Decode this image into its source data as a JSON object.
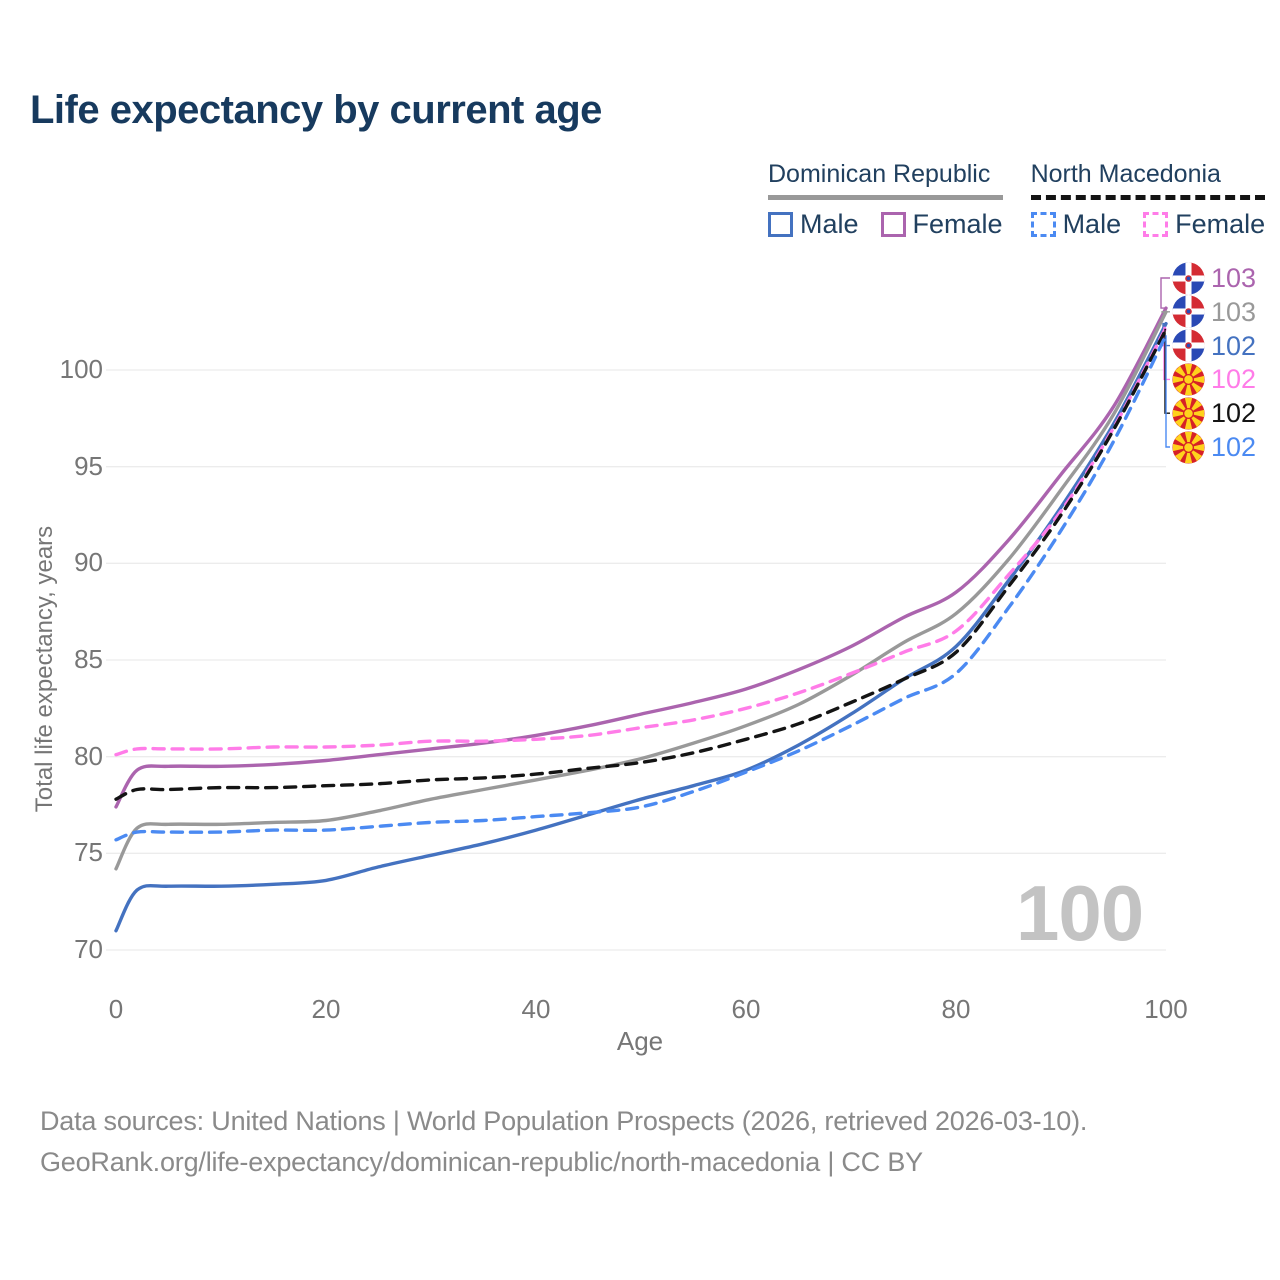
{
  "title": "Life expectancy by current age",
  "legend": {
    "groups": [
      {
        "title": "Dominican Republic",
        "underline_color": "#999999",
        "underline_dashed": false,
        "items": [
          {
            "label": "Male",
            "color": "#4472c0",
            "dashed": false
          },
          {
            "label": "Female",
            "color": "#ab64ae",
            "dashed": false
          }
        ]
      },
      {
        "title": "North Macedonia",
        "underline_color": "#141414",
        "underline_dashed": true,
        "items": [
          {
            "label": "Male",
            "color": "#4b8af2",
            "dashed": true
          },
          {
            "label": "Female",
            "color": "#ff7ce8",
            "dashed": true
          }
        ]
      }
    ]
  },
  "chart_data": {
    "type": "line",
    "title": "Life expectancy by current age",
    "xlabel": "Age",
    "ylabel": "Total life expectancy, years",
    "xlim": [
      0,
      100
    ],
    "ylim": [
      69,
      104.5
    ],
    "x_ticks": [
      0,
      20,
      40,
      60,
      80,
      100
    ],
    "y_ticks": [
      70,
      75,
      80,
      85,
      90,
      95,
      100
    ],
    "grid": true,
    "legend_position": "top-right",
    "age_indicator": "100",
    "x": [
      0,
      2,
      5,
      10,
      15,
      20,
      25,
      30,
      35,
      40,
      45,
      50,
      55,
      60,
      65,
      70,
      75,
      80,
      85,
      90,
      95,
      100
    ],
    "series": [
      {
        "name": "Dominican Republic Female",
        "country": "Dominican Republic",
        "sex": "Female",
        "color": "#ab64ae",
        "dashed": false,
        "flag": "dominican-republic",
        "end_label": "103",
        "values": [
          77.4,
          79.3,
          79.5,
          79.5,
          79.6,
          79.8,
          80.1,
          80.4,
          80.7,
          81.1,
          81.6,
          82.2,
          82.8,
          83.5,
          84.5,
          85.7,
          87.2,
          88.5,
          91.2,
          94.6,
          98.1,
          103.2
        ]
      },
      {
        "name": "Dominican Republic Both sexes",
        "country": "Dominican Republic",
        "sex": "Both",
        "color": "#999999",
        "dashed": false,
        "flag": "dominican-republic",
        "end_label": "103",
        "values": [
          74.2,
          76.3,
          76.5,
          76.5,
          76.6,
          76.7,
          77.2,
          77.8,
          78.3,
          78.8,
          79.3,
          79.9,
          80.7,
          81.6,
          82.7,
          84.2,
          85.9,
          87.4,
          90.2,
          93.8,
          97.7,
          103.0
        ]
      },
      {
        "name": "Dominican Republic Male",
        "country": "Dominican Republic",
        "sex": "Male",
        "color": "#4472c0",
        "dashed": false,
        "flag": "dominican-republic",
        "end_label": "102",
        "values": [
          71.0,
          73.1,
          73.3,
          73.3,
          73.4,
          73.6,
          74.3,
          74.9,
          75.5,
          76.2,
          77.0,
          77.8,
          78.5,
          79.3,
          80.6,
          82.2,
          84.0,
          85.7,
          89.1,
          92.9,
          97.2,
          102.4
        ]
      },
      {
        "name": "North Macedonia Female",
        "country": "North Macedonia",
        "sex": "Female",
        "color": "#ff7ce8",
        "dashed": true,
        "flag": "north-macedonia",
        "end_label": "102",
        "values": [
          80.1,
          80.4,
          80.4,
          80.4,
          80.5,
          80.5,
          80.6,
          80.8,
          80.8,
          80.9,
          81.1,
          81.5,
          81.9,
          82.5,
          83.3,
          84.3,
          85.4,
          86.5,
          89.4,
          92.7,
          97.0,
          102.2
        ]
      },
      {
        "name": "North Macedonia Both sexes",
        "country": "North Macedonia",
        "sex": "Both",
        "color": "#141414",
        "dashed": true,
        "flag": "north-macedonia",
        "end_label": "102",
        "values": [
          77.8,
          78.3,
          78.3,
          78.4,
          78.4,
          78.5,
          78.6,
          78.8,
          78.9,
          79.1,
          79.4,
          79.7,
          80.2,
          80.9,
          81.7,
          82.8,
          84.0,
          85.4,
          88.8,
          92.5,
          96.9,
          102.1
        ]
      },
      {
        "name": "North Macedonia Male",
        "country": "North Macedonia",
        "sex": "Male",
        "color": "#4b8af2",
        "dashed": true,
        "flag": "north-macedonia",
        "end_label": "102",
        "values": [
          75.7,
          76.1,
          76.1,
          76.1,
          76.2,
          76.2,
          76.4,
          76.6,
          76.7,
          76.9,
          77.1,
          77.4,
          78.2,
          79.2,
          80.3,
          81.6,
          83.0,
          84.3,
          87.7,
          91.7,
          96.3,
          101.8
        ]
      }
    ]
  },
  "flag_colors": {
    "dominican_blue": "#2a49b5",
    "dominican_red": "#d42b33",
    "macedonia_red": "#d62127",
    "macedonia_yellow": "#ffd21c"
  },
  "footer": {
    "line1": "Data sources: United Nations | World Population Prospects (2026, retrieved 2026-03-10).",
    "line2": "GeoRank.org/life-expectancy/dominican-republic/north-macedonia | CC BY"
  }
}
